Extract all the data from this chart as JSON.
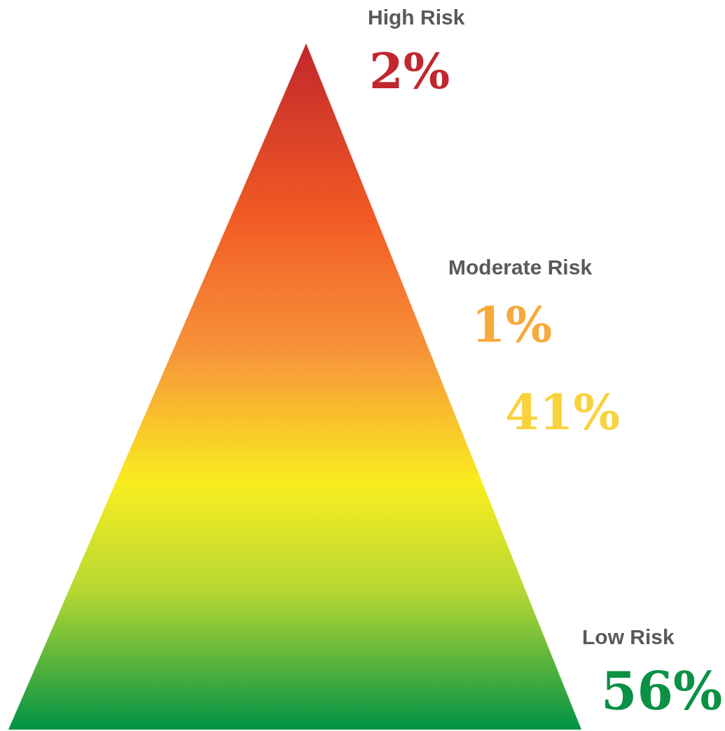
{
  "chart_data": {
    "type": "other",
    "categories": [
      "High Risk",
      "Moderate Risk",
      null,
      "Low Risk"
    ],
    "values": [
      2,
      1,
      41,
      56
    ],
    "value_labels": [
      "2%",
      "1%",
      "41%",
      "56%"
    ],
    "colors": [
      "#c1272d",
      "#f7a93b",
      "#f9d23c",
      "#0a9145"
    ]
  }
}
